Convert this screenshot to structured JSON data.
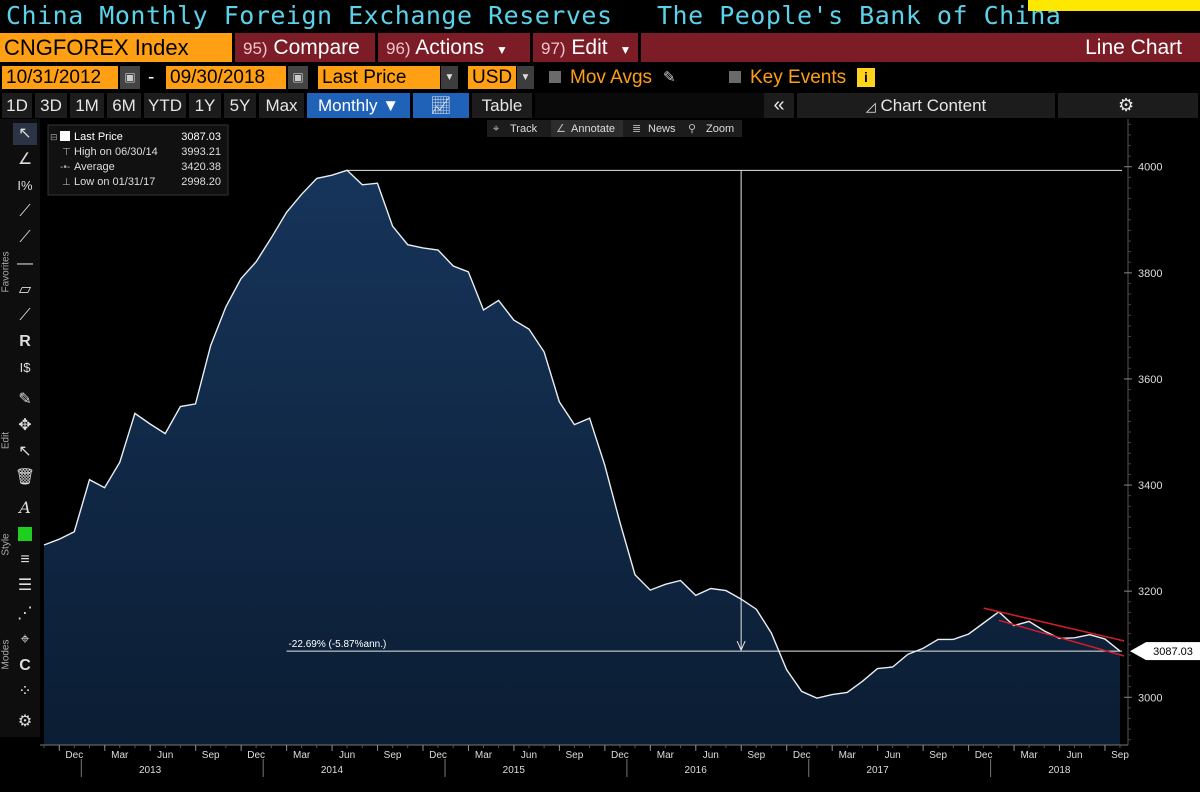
{
  "window": {
    "title_left": "China Monthly Foreign Exchange Reserves",
    "title_right": "The People's Bank of China"
  },
  "toolbar": {
    "security": "CNGFOREX Index",
    "compare_num": "95)",
    "compare_label": "Compare",
    "actions_num": "96)",
    "actions_label": "Actions",
    "edit_num": "97)",
    "edit_label": "Edit",
    "chart_type": "Line Chart"
  },
  "options": {
    "start_date": "10/31/2012",
    "date_sep": "-",
    "end_date": "09/30/2018",
    "field": "Last Price",
    "currency": "USD",
    "mov_avgs": "Mov Avgs",
    "key_events": "Key Events",
    "key_events_badge": "i"
  },
  "ranges": {
    "buttons": [
      "1D",
      "3D",
      "1M",
      "6M",
      "YTD",
      "1Y",
      "5Y",
      "Max"
    ],
    "frequency": "Monthly",
    "table_label": "Table",
    "collapse": "«",
    "chart_content": "Chart Content"
  },
  "side_labels": {
    "favorites": "Favorites",
    "edit": "Edit",
    "style": "Style",
    "modes": "Modes"
  },
  "annotate_bar": [
    "Track",
    "Annotate",
    "News",
    "Zoom"
  ],
  "legend": {
    "last_label": "Last Price",
    "last_value": "3087.03",
    "high_label": "High on 06/30/14",
    "high_value": "3993.21",
    "avg_label": "Average",
    "avg_value": "3420.38",
    "low_label": "Low on 01/31/17",
    "low_value": "2998.20"
  },
  "colors": {
    "line": "#e9eef2",
    "fill_top": "#16345a",
    "fill_bottom": "#0b1d33",
    "accent_orange": "#ff9f14",
    "accent_red": "#7b1c26",
    "title_cyan": "#5bd2ea",
    "trend_red": "#d21c2a"
  },
  "chart_data": {
    "type": "area",
    "title": "China Monthly Foreign Exchange Reserves",
    "xlabel": "",
    "ylabel": "",
    "x": [
      "2012-10",
      "2012-11",
      "2012-12",
      "2013-01",
      "2013-02",
      "2013-03",
      "2013-04",
      "2013-05",
      "2013-06",
      "2013-07",
      "2013-08",
      "2013-09",
      "2013-10",
      "2013-11",
      "2013-12",
      "2014-01",
      "2014-02",
      "2014-03",
      "2014-04",
      "2014-05",
      "2014-06",
      "2014-07",
      "2014-08",
      "2014-09",
      "2014-10",
      "2014-11",
      "2014-12",
      "2015-01",
      "2015-02",
      "2015-03",
      "2015-04",
      "2015-05",
      "2015-06",
      "2015-07",
      "2015-08",
      "2015-09",
      "2015-10",
      "2015-11",
      "2015-12",
      "2016-01",
      "2016-02",
      "2016-03",
      "2016-04",
      "2016-05",
      "2016-06",
      "2016-07",
      "2016-08",
      "2016-09",
      "2016-10",
      "2016-11",
      "2016-12",
      "2017-01",
      "2017-02",
      "2017-03",
      "2017-04",
      "2017-05",
      "2017-06",
      "2017-07",
      "2017-08",
      "2017-09",
      "2017-10",
      "2017-11",
      "2017-12",
      "2018-01",
      "2018-02",
      "2018-03",
      "2018-04",
      "2018-05",
      "2018-06",
      "2018-07",
      "2018-08",
      "2018-09"
    ],
    "values": [
      3287,
      3298,
      3312,
      3410,
      3395,
      3443,
      3535,
      3515,
      3497,
      3548,
      3553,
      3663,
      3736,
      3789,
      3821,
      3866,
      3914,
      3948,
      3978,
      3984,
      3993.21,
      3966,
      3969,
      3888,
      3853,
      3847,
      3843,
      3813,
      3802,
      3730,
      3748,
      3711,
      3694,
      3651,
      3557,
      3514,
      3526,
      3438,
      3330,
      3231,
      3202,
      3213,
      3220,
      3192,
      3205,
      3201,
      3185,
      3166,
      3121,
      3052,
      3011,
      2998.2,
      3005,
      3009,
      3030,
      3054,
      3057,
      3081,
      3092,
      3109,
      3109,
      3119,
      3140,
      3161,
      3135,
      3143,
      3125,
      3111,
      3112,
      3118,
      3110,
      3087.03
    ],
    "yticks": [
      3000,
      3200,
      3400,
      3600,
      3800,
      4000
    ],
    "ylim": [
      2910,
      4090
    ],
    "xticks": [
      {
        "date": "2012-12",
        "label": "Dec"
      },
      {
        "date": "2013-03",
        "label": "Mar"
      },
      {
        "date": "2013-06",
        "label": "Jun"
      },
      {
        "date": "2013-09",
        "label": "Sep"
      },
      {
        "date": "2013-12",
        "label": "Dec"
      },
      {
        "date": "2014-03",
        "label": "Mar"
      },
      {
        "date": "2014-06",
        "label": "Jun"
      },
      {
        "date": "2014-09",
        "label": "Sep"
      },
      {
        "date": "2014-12",
        "label": "Dec"
      },
      {
        "date": "2015-03",
        "label": "Mar"
      },
      {
        "date": "2015-06",
        "label": "Jun"
      },
      {
        "date": "2015-09",
        "label": "Sep"
      },
      {
        "date": "2015-12",
        "label": "Dec"
      },
      {
        "date": "2016-03",
        "label": "Mar"
      },
      {
        "date": "2016-06",
        "label": "Jun"
      },
      {
        "date": "2016-09",
        "label": "Sep"
      },
      {
        "date": "2016-12",
        "label": "Dec"
      },
      {
        "date": "2017-03",
        "label": "Mar"
      },
      {
        "date": "2017-06",
        "label": "Jun"
      },
      {
        "date": "2017-09",
        "label": "Sep"
      },
      {
        "date": "2017-12",
        "label": "Dec"
      },
      {
        "date": "2018-03",
        "label": "Mar"
      },
      {
        "date": "2018-06",
        "label": "Jun"
      },
      {
        "date": "2018-09",
        "label": "Sep"
      }
    ],
    "year_labels": [
      {
        "date": "2013-05",
        "label": "2013"
      },
      {
        "date": "2014-05",
        "label": "2014"
      },
      {
        "date": "2015-05",
        "label": "2015"
      },
      {
        "date": "2016-05",
        "label": "2016"
      },
      {
        "date": "2017-05",
        "label": "2017"
      },
      {
        "date": "2018-05",
        "label": "2018"
      }
    ],
    "last_value_label": "3087.03",
    "high_line": 3993.21,
    "current_line": 3087.03,
    "drawdown_text": "-22.69% (-5.87%ann.)",
    "drawdown_arrow_date": "2016-08",
    "drawdown_line_start": "2014-02",
    "trend_lines": [
      {
        "from": "2017-12",
        "from_value": 3168,
        "to": "2018-09",
        "to_value": 3108
      },
      {
        "from": "2018-01",
        "from_value": 3145,
        "to": "2018-09",
        "to_value": 3080
      }
    ],
    "grid": false,
    "legend_position": "top-left"
  }
}
